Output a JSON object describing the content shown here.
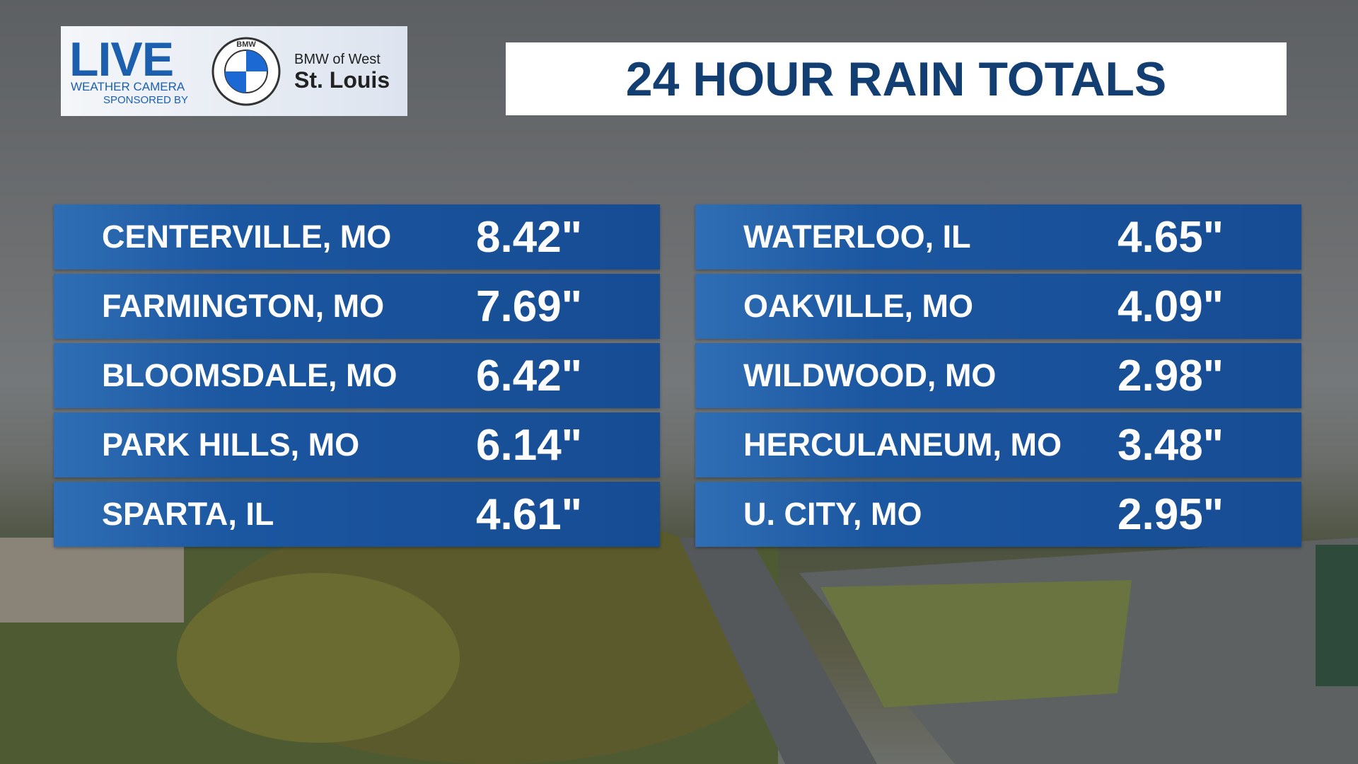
{
  "logo": {
    "live": "LIVE",
    "line1": "WEATHER CAMERA",
    "line2": "SPONSORED BY",
    "brand": "BMW",
    "dealer_top": "BMW of West",
    "dealer_bottom": "St. Louis"
  },
  "header": {
    "title": "24 HOUR RAIN TOTALS"
  },
  "columns": [
    [
      {
        "location": "CENTERVILLE, MO",
        "total": "8.42\""
      },
      {
        "location": "FARMINGTON, MO",
        "total": "7.69\""
      },
      {
        "location": "BLOOMSDALE, MO",
        "total": "6.42\""
      },
      {
        "location": "PARK HILLS, MO",
        "total": "6.14\""
      },
      {
        "location": "SPARTA, IL",
        "total": "4.61\""
      }
    ],
    [
      {
        "location": "WATERLOO, IL",
        "total": "4.65\""
      },
      {
        "location": "OAKVILLE, MO",
        "total": "4.09\""
      },
      {
        "location": "WILDWOOD, MO",
        "total": "2.98\""
      },
      {
        "location": "HERCULANEUM, MO",
        "total": "3.48\""
      },
      {
        "location": "U. CITY, MO",
        "total": "2.95\""
      }
    ]
  ]
}
